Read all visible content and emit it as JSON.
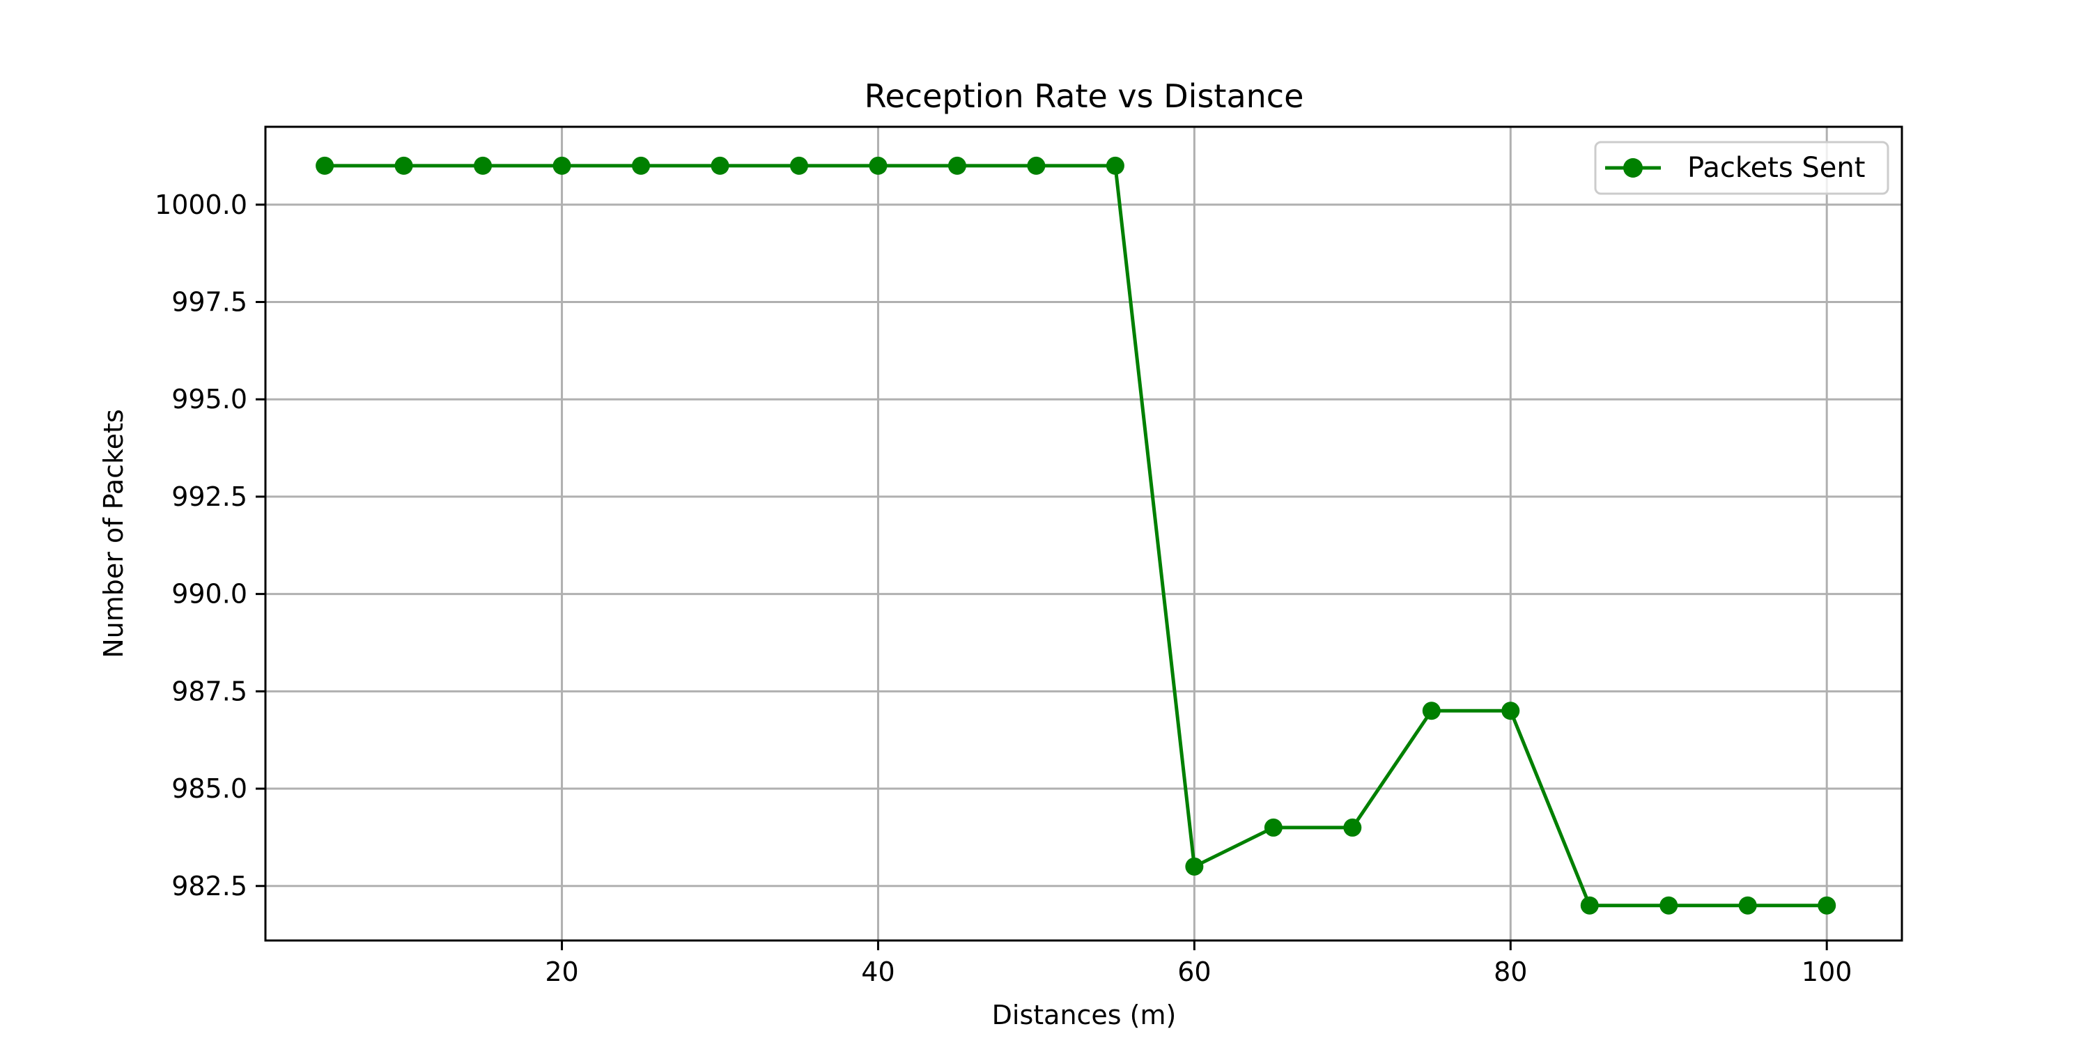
{
  "chart_data": {
    "type": "line",
    "title": "Reception Rate vs Distance",
    "xlabel": "Distances (m)",
    "ylabel": "Number of Packets",
    "xlim": [
      1.25,
      104.75
    ],
    "ylim": [
      981.1,
      1002.0
    ],
    "xticks": [
      20,
      40,
      60,
      80,
      100
    ],
    "yticks": [
      982.5,
      985.0,
      987.5,
      990.0,
      992.5,
      995.0,
      997.5,
      1000.0
    ],
    "grid": true,
    "legend_position": "top-right",
    "series": [
      {
        "name": "Packets Sent",
        "color": "#008000",
        "marker": "circle",
        "x": [
          5,
          10,
          15,
          20,
          25,
          30,
          35,
          40,
          45,
          50,
          55,
          60,
          65,
          70,
          75,
          80,
          85,
          90,
          95,
          100
        ],
        "y": [
          1001,
          1001,
          1001,
          1001,
          1001,
          1001,
          1001,
          1001,
          1001,
          1001,
          1001,
          983,
          984,
          984,
          987,
          987,
          982,
          982,
          982,
          982
        ]
      }
    ]
  }
}
